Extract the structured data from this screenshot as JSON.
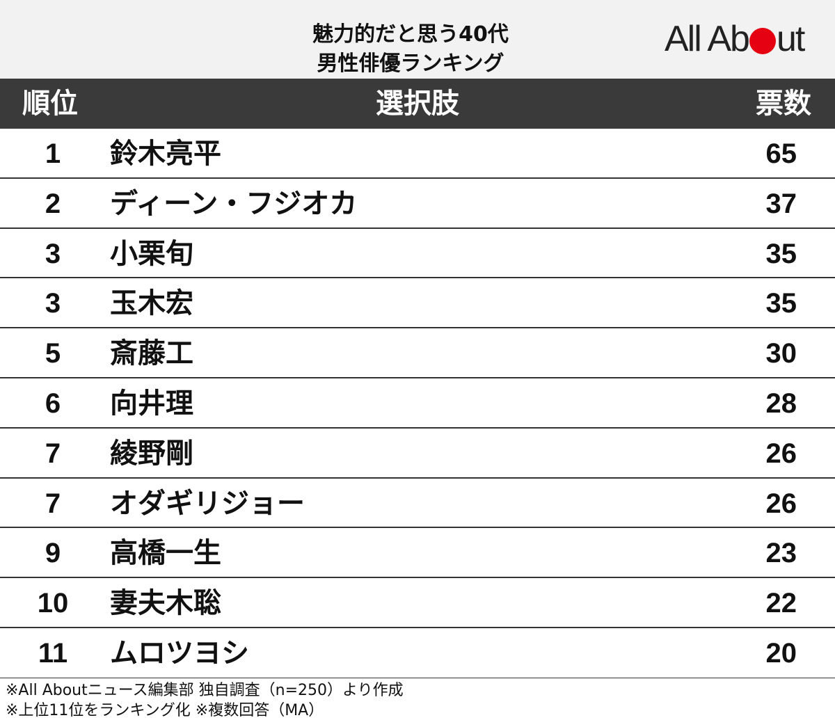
{
  "title": {
    "line1": "魅力的だと思う40代",
    "line2": "男性俳優ランキング"
  },
  "logo": {
    "text_before": "All Ab",
    "text_after": "ut",
    "dot_color": "#e50012",
    "icon": "all-about-logo"
  },
  "header": {
    "rank": "順位",
    "choice": "選択肢",
    "votes": "票数"
  },
  "chart_data": {
    "type": "table",
    "title": "魅力的だと思う40代男性俳優ランキング",
    "columns": [
      "順位",
      "選択肢",
      "票数"
    ],
    "rows": [
      {
        "rank": "1",
        "name": "鈴木亮平",
        "votes": "65"
      },
      {
        "rank": "2",
        "name": "ディーン・フジオカ",
        "votes": "37"
      },
      {
        "rank": "3",
        "name": "小栗旬",
        "votes": "35"
      },
      {
        "rank": "3",
        "name": "玉木宏",
        "votes": "35"
      },
      {
        "rank": "5",
        "name": "斎藤工",
        "votes": "30"
      },
      {
        "rank": "6",
        "name": "向井理",
        "votes": "28"
      },
      {
        "rank": "7",
        "name": "綾野剛",
        "votes": "26"
      },
      {
        "rank": "7",
        "name": "オダギリジョー",
        "votes": "26"
      },
      {
        "rank": "9",
        "name": "高橋一生",
        "votes": "23"
      },
      {
        "rank": "10",
        "name": "妻夫木聡",
        "votes": "22"
      },
      {
        "rank": "11",
        "name": "ムロツヨシ",
        "votes": "20"
      }
    ]
  },
  "notes": {
    "line1": "※All Aboutニュース編集部 独自調査（n=250）より作成",
    "line2": "※上位11位をランキング化 ※複数回答（MA）"
  },
  "colors": {
    "header_bg": "#3a3a3a",
    "title_bg": "#f2f2f2",
    "accent": "#e50012"
  }
}
